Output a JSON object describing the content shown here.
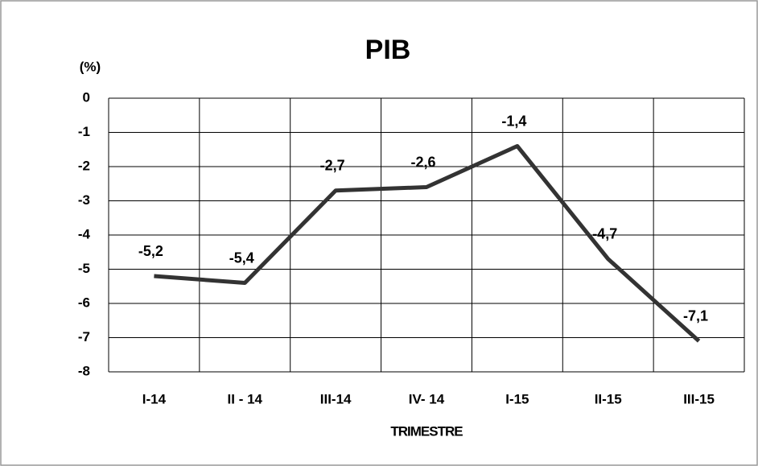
{
  "chart_data": {
    "type": "line",
    "title": "PIB",
    "y_label": "(%)",
    "x_label": "TRIMESTRE",
    "categories": [
      "I-14",
      "II - 14",
      "III-14",
      "IV- 14",
      "I-15",
      "II-15",
      "III-15"
    ],
    "values": [
      -5.2,
      -5.4,
      -2.7,
      -2.6,
      -1.4,
      -4.7,
      -7.1
    ],
    "value_labels": [
      "-5,2",
      "-5,4",
      "-2,7",
      "-2,6",
      "-1,4",
      "-4,7",
      "-7,1"
    ],
    "color": "#333333",
    "ylim": [
      -8,
      0
    ],
    "yticks": [
      0,
      -1,
      -2,
      -3,
      -4,
      -5,
      -6,
      -7,
      -8
    ],
    "grid": true
  }
}
